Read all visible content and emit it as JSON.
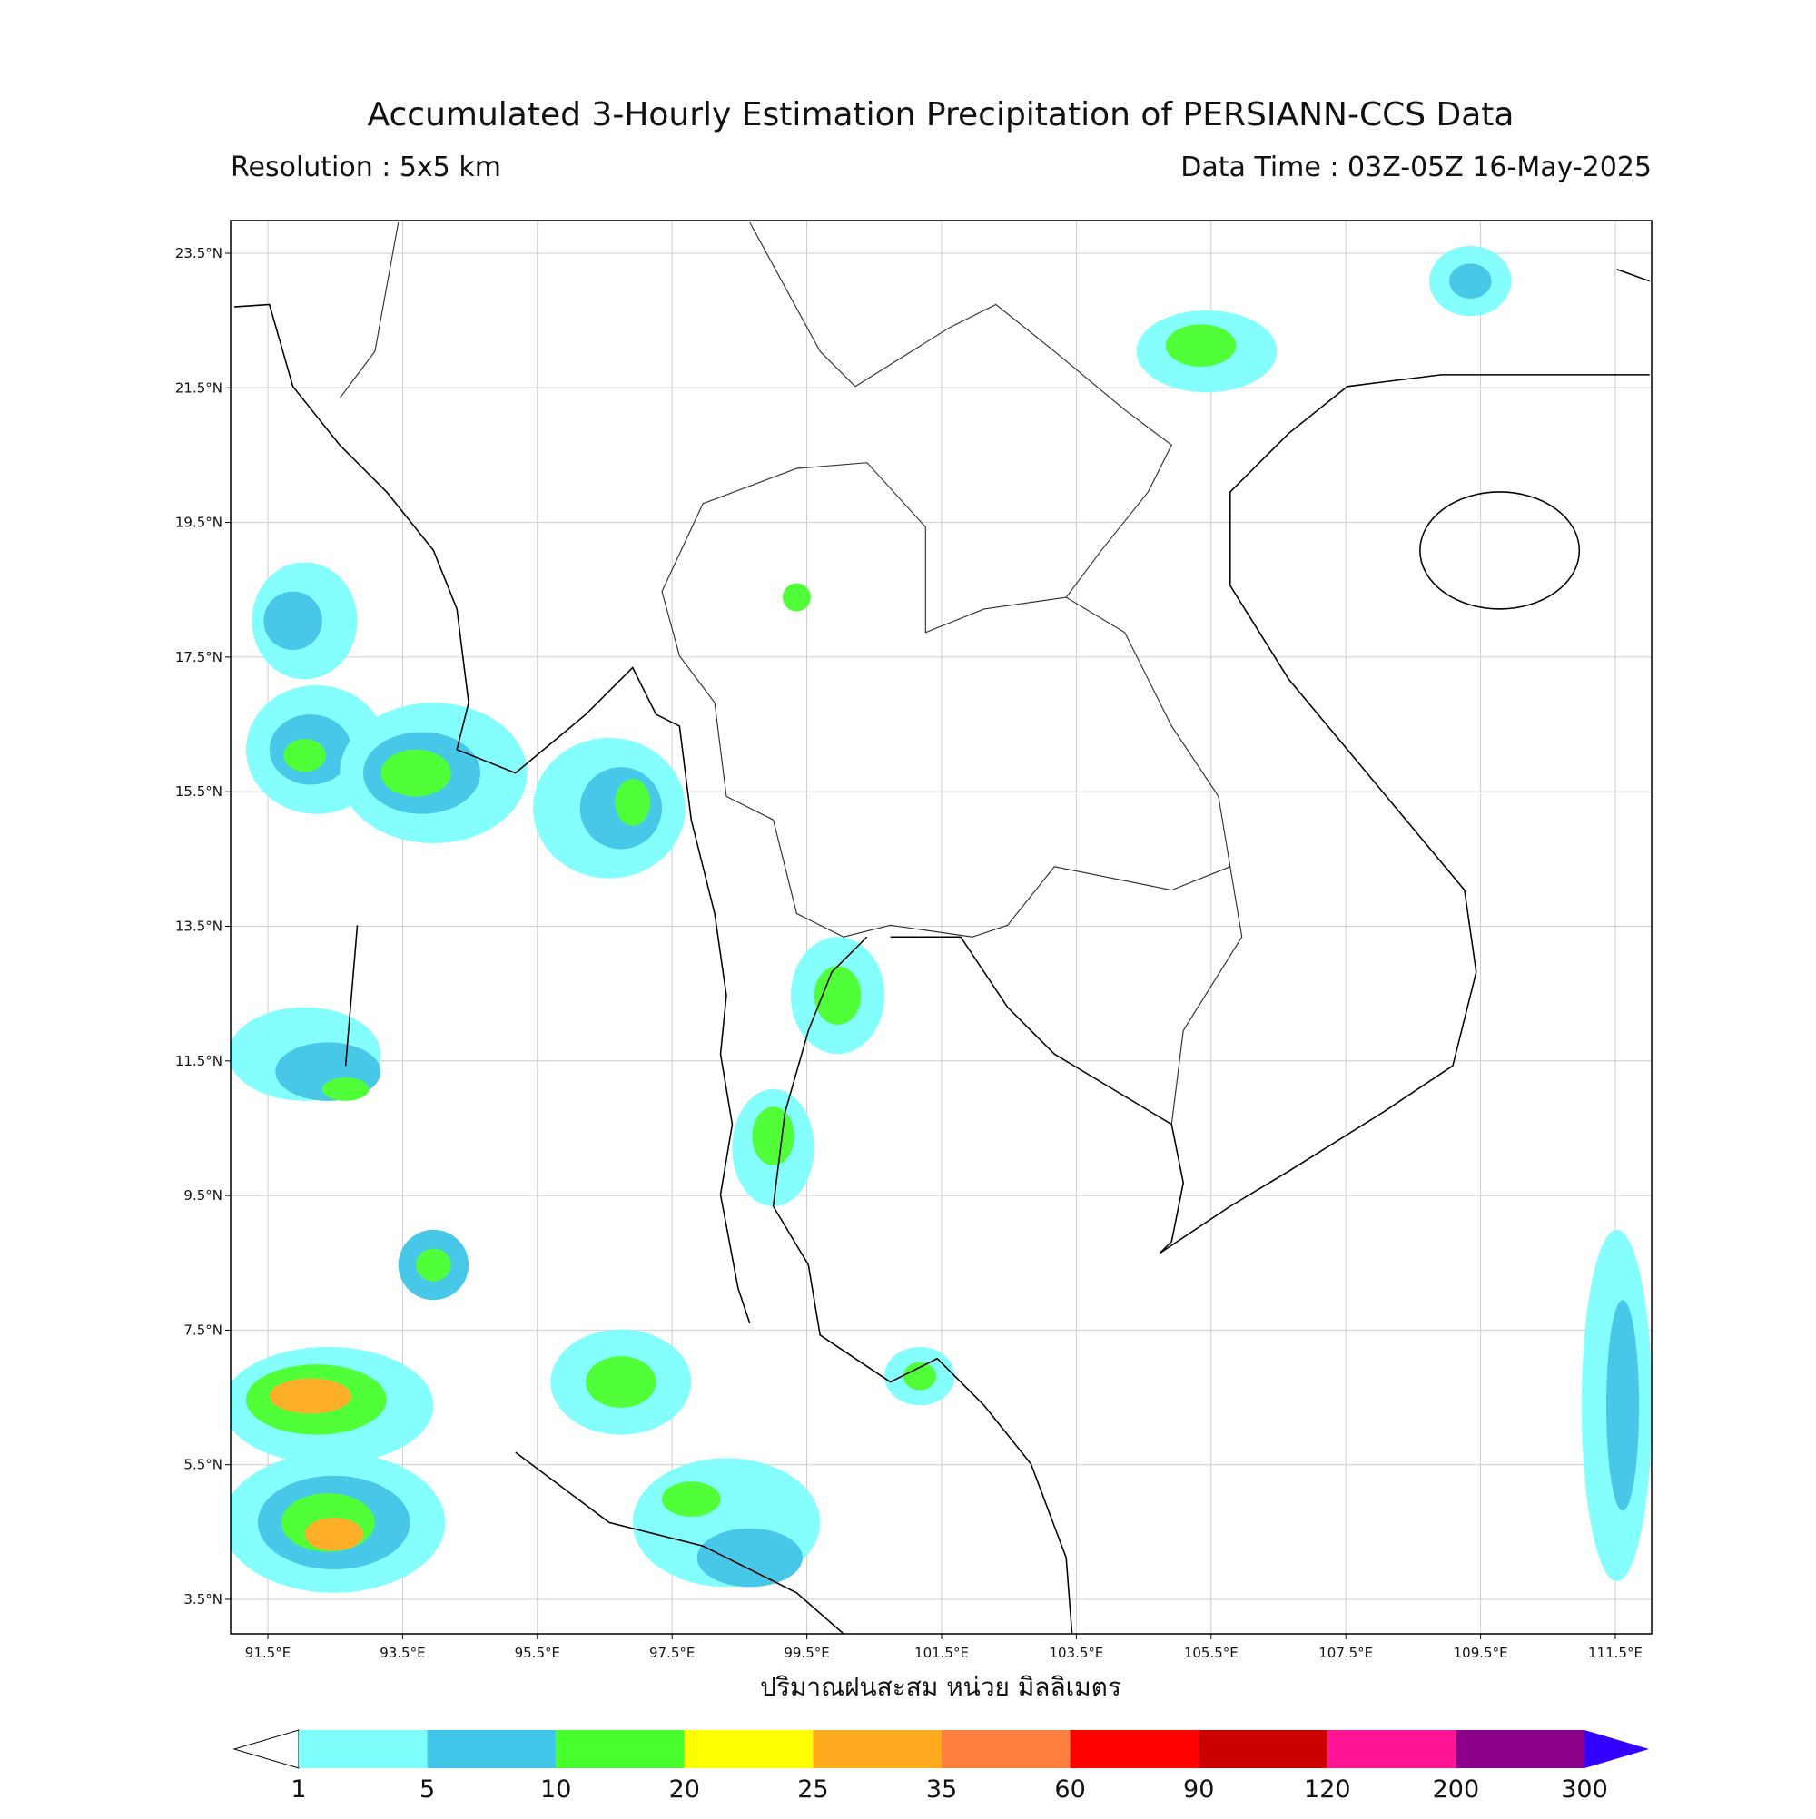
{
  "header": {
    "title": "Accumulated 3-Hourly Estimation Precipitation of PERSIANN-CCS Data",
    "resolution": "Resolution : 5x5 km",
    "data_time": "Data Time : 03Z-05Z 16-May-2025"
  },
  "map": {
    "lat_ticks": [
      {
        "value": 23.5,
        "label": "23.5°N"
      },
      {
        "value": 21.5,
        "label": "21.5°N"
      },
      {
        "value": 19.5,
        "label": "19.5°N"
      },
      {
        "value": 17.5,
        "label": "17.5°N"
      },
      {
        "value": 15.5,
        "label": "15.5°N"
      },
      {
        "value": 13.5,
        "label": "13.5°N"
      },
      {
        "value": 11.5,
        "label": "11.5°N"
      },
      {
        "value": 9.5,
        "label": "9.5°N"
      },
      {
        "value": 7.5,
        "label": "7.5°N"
      },
      {
        "value": 5.5,
        "label": "5.5°N"
      },
      {
        "value": 3.5,
        "label": "3.5°N"
      }
    ],
    "lon_ticks": [
      {
        "value": 91.5,
        "label": "91.5°E"
      },
      {
        "value": 93.5,
        "label": "93.5°E"
      },
      {
        "value": 95.5,
        "label": "95.5°E"
      },
      {
        "value": 97.5,
        "label": "97.5°E"
      },
      {
        "value": 99.5,
        "label": "99.5°E"
      },
      {
        "value": 101.5,
        "label": "101.5°E"
      },
      {
        "value": 103.5,
        "label": "103.5°E"
      },
      {
        "value": 105.5,
        "label": "105.5°E"
      },
      {
        "value": 107.5,
        "label": "107.5°E"
      },
      {
        "value": 109.5,
        "label": "109.5°E"
      },
      {
        "value": 111.5,
        "label": "111.5°E"
      }
    ],
    "x_label": "ปริมาณฝนสะสม หน่วย มิลลิเมตร"
  },
  "colorbar": {
    "bounds": [
      1,
      5,
      10,
      20,
      25,
      35,
      60,
      90,
      120,
      200,
      300
    ],
    "colors": [
      "#7ffefe",
      "#3fc6e8",
      "#48ff2e",
      "#ffff00",
      "#ffaa1f",
      "#ff7f3f",
      "#ff0000",
      "#cc0000",
      "#ff1493",
      "#8b008b"
    ],
    "under_color": "#ffffff",
    "over_color": "#3300ff"
  }
}
